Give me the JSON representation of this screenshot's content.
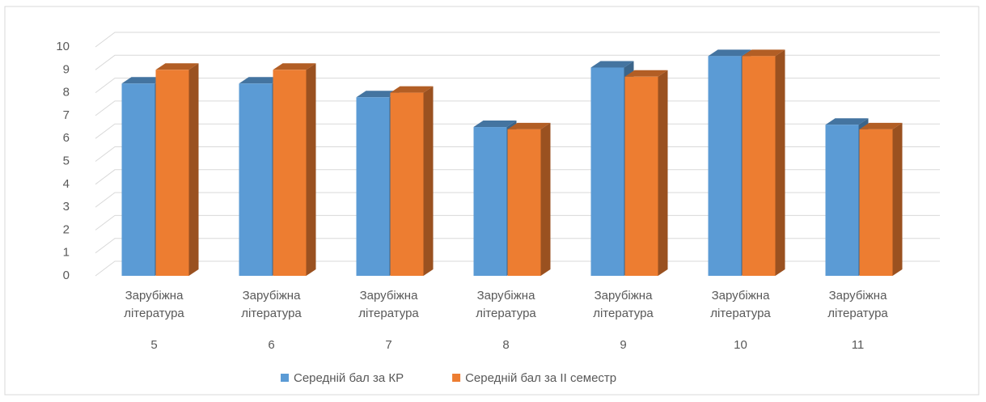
{
  "chart_data": {
    "type": "bar3d",
    "categories": [
      [
        "Зарубіжна",
        "література",
        "5"
      ],
      [
        "Зарубіжна",
        "література",
        "6"
      ],
      [
        "Зарубіжна",
        "література",
        "7"
      ],
      [
        "Зарубіжна",
        "література",
        "8"
      ],
      [
        "Зарубіжна",
        "література",
        "9"
      ],
      [
        "Зарубіжна",
        "література",
        "10"
      ],
      [
        "Зарубіжна",
        "література",
        "11"
      ]
    ],
    "series": [
      {
        "name": "Середній бал за КР",
        "color": "#5b9bd5",
        "values": [
          8.4,
          8.4,
          7.8,
          6.5,
          9.1,
          9.6,
          6.6
        ]
      },
      {
        "name": "Середній бал за ІІ семестр",
        "color": "#ed7d31",
        "values": [
          9.0,
          9.0,
          8.0,
          6.4,
          8.7,
          9.6,
          6.4
        ]
      }
    ],
    "ylim": [
      0,
      10
    ],
    "yticks": [
      0,
      1,
      2,
      3,
      4,
      5,
      6,
      7,
      8,
      9,
      10
    ],
    "grid": true,
    "legend": "bottom"
  }
}
